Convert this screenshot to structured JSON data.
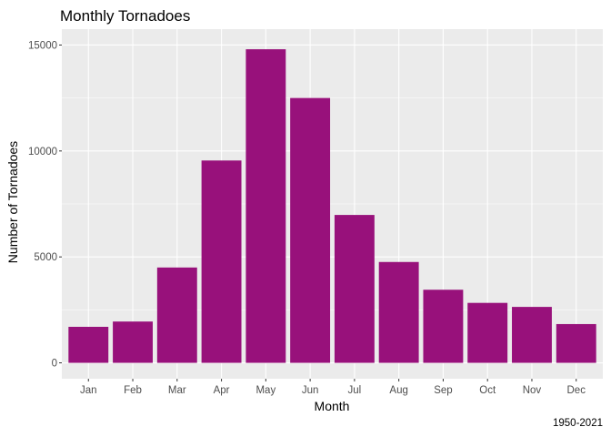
{
  "chart_data": {
    "type": "bar",
    "title": "Monthly Tornadoes",
    "xlabel": "Month",
    "ylabel": "Number of Tornadoes",
    "caption": "1950-2021",
    "categories": [
      "Jan",
      "Feb",
      "Mar",
      "Apr",
      "May",
      "Jun",
      "Jul",
      "Aug",
      "Sep",
      "Oct",
      "Nov",
      "Dec"
    ],
    "values": [
      1700,
      1950,
      4500,
      9550,
      14800,
      12500,
      6980,
      4760,
      3450,
      2830,
      2640,
      1830
    ],
    "ylim": [
      0,
      15000
    ],
    "yticks": [
      0,
      5000,
      10000,
      15000
    ],
    "ytick_labels": [
      "0",
      "5000",
      "10000",
      "15000"
    ],
    "grid": true,
    "colors": {
      "bar": "#98117B",
      "panel": "#EBEBEB",
      "grid_major": "#FFFFFF"
    }
  }
}
